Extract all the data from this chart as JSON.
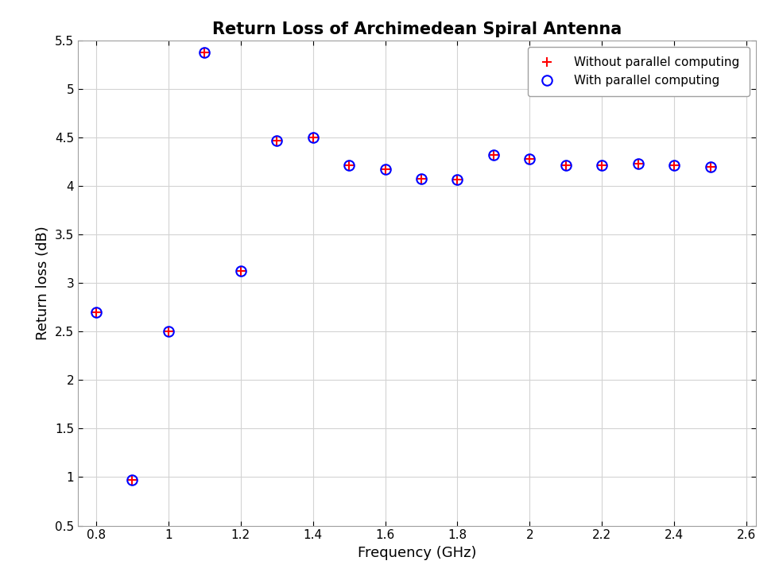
{
  "title": "Return Loss of Archimedean Spiral Antenna",
  "xlabel": "Frequency (GHz)",
  "ylabel": "Return loss (dB)",
  "xlim": [
    0.75,
    2.625
  ],
  "ylim": [
    0.5,
    5.5
  ],
  "xticks": [
    0.8,
    1.0,
    1.2,
    1.4,
    1.6,
    1.8,
    2.0,
    2.2,
    2.4,
    2.6
  ],
  "yticks": [
    0.5,
    1.0,
    1.5,
    2.0,
    2.5,
    3.0,
    3.5,
    4.0,
    4.5,
    5.0,
    5.5
  ],
  "freq": [
    0.8,
    0.9,
    1.0,
    1.1,
    1.2,
    1.3,
    1.4,
    1.5,
    1.6,
    1.7,
    1.8,
    1.9,
    2.0,
    2.1,
    2.2,
    2.3,
    2.4,
    2.5
  ],
  "values": [
    2.7,
    0.97,
    2.5,
    5.38,
    3.13,
    4.47,
    4.5,
    4.22,
    4.18,
    4.08,
    4.07,
    4.32,
    4.28,
    4.22,
    4.22,
    4.23,
    4.22,
    4.2
  ],
  "plus_color": "red",
  "circle_color": "blue",
  "legend_plus": "Without parallel computing",
  "legend_circle": "With parallel computing",
  "figure_facecolor": "#ffffff",
  "axes_facecolor": "#ffffff",
  "grid_color": "#d3d3d3",
  "spine_color": "#a0a0a0",
  "title_fontsize": 15,
  "label_fontsize": 13,
  "tick_fontsize": 11,
  "marker_size": 9,
  "marker_linewidth": 1.5
}
